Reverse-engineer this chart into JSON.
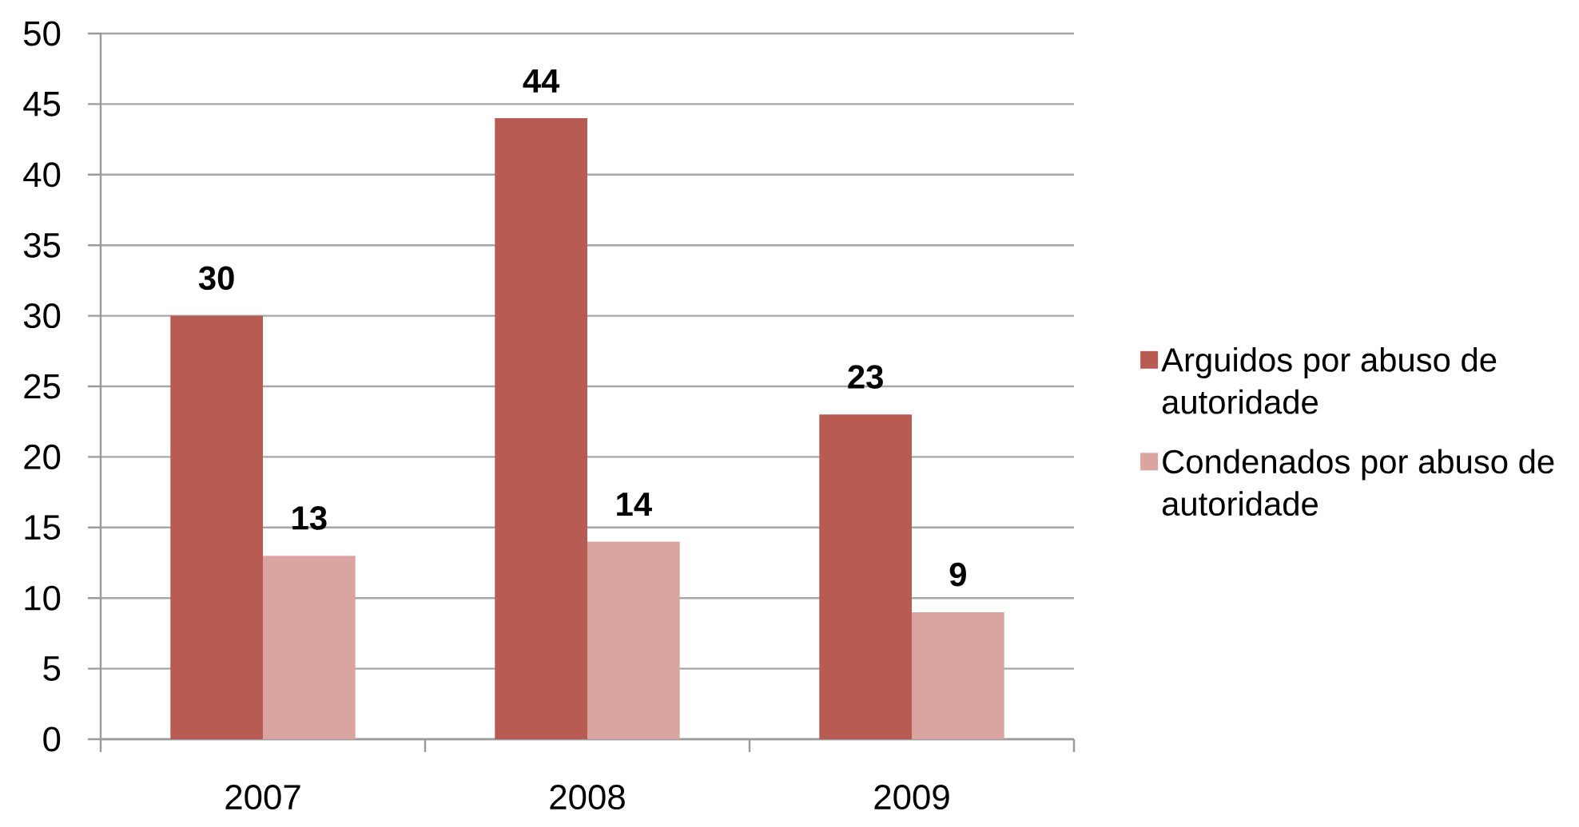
{
  "chart_data": {
    "type": "bar",
    "categories": [
      "2007",
      "2008",
      "2009"
    ],
    "series": [
      {
        "name": "Arguidos por abuso de autoridade",
        "color": "#b85b53",
        "values": [
          30,
          44,
          23
        ]
      },
      {
        "name": "Condenados por abuso de autoridade",
        "color": "#daa5a1",
        "values": [
          13,
          14,
          9
        ]
      }
    ],
    "ylim": [
      0,
      50
    ],
    "yticks": [
      0,
      5,
      10,
      15,
      20,
      25,
      30,
      35,
      40,
      45,
      50
    ],
    "grid": "y",
    "legend": "right",
    "data_labels": true
  }
}
